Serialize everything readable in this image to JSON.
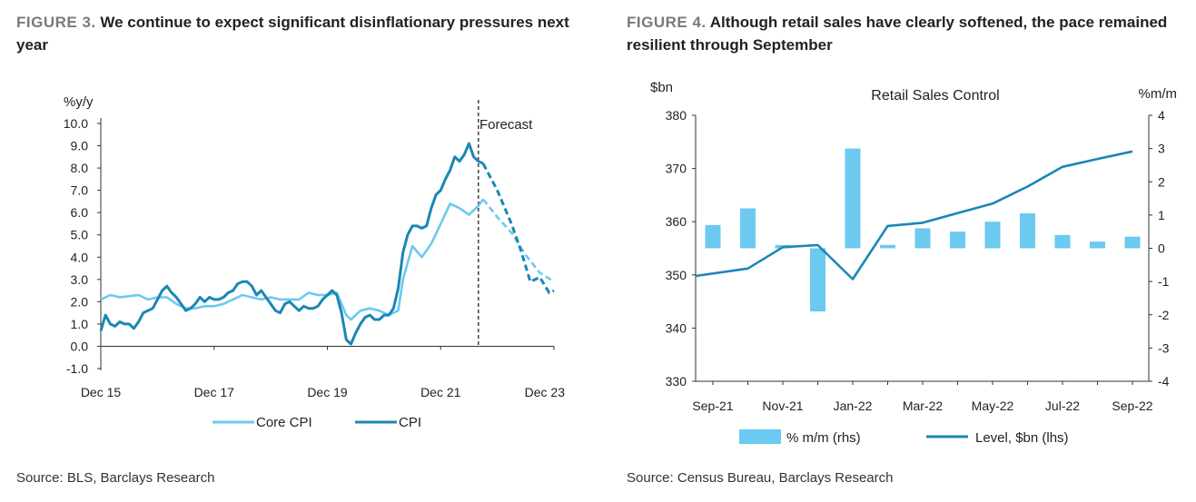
{
  "left": {
    "figure_number": "FIGURE 3.",
    "figure_title": "We continue to expect significant disinflationary pressures next year",
    "source": "Source: BLS, Barclays Research"
  },
  "right": {
    "figure_number": "FIGURE 4.",
    "figure_title": "Although retail sales have clearly softened, the pace remained resilient through September",
    "source": "Source: Census Bureau, Barclays Research"
  },
  "chart_data": [
    {
      "type": "line",
      "title": "",
      "ylabel": "%y/y",
      "xlabel": "",
      "ylim": [
        -1.0,
        10.0
      ],
      "yticks": [
        "10.0",
        "9.0",
        "8.0",
        "7.0",
        "6.0",
        "5.0",
        "4.0",
        "3.0",
        "2.0",
        "1.0",
        "0.0",
        "-1.0"
      ],
      "x_tick_labels": [
        "Dec 15",
        "Dec 17",
        "Dec 19",
        "Dec 21",
        "Dec 23"
      ],
      "annotation": "Forecast",
      "forecast_start_month": "Sep 2022",
      "legend": [
        "Core CPI",
        "CPI"
      ],
      "legend_position": "bottom",
      "grid": false,
      "colors": {
        "Core CPI": "#6cc9ef",
        "CPI": "#1b86b6"
      },
      "series": [
        {
          "name": "Core CPI",
          "color": "#6cc9ef",
          "points": [
            [
              "2015-12",
              2.1
            ],
            [
              "2016-02",
              2.3
            ],
            [
              "2016-04",
              2.2
            ],
            [
              "2016-06",
              2.25
            ],
            [
              "2016-08",
              2.3
            ],
            [
              "2016-10",
              2.1
            ],
            [
              "2016-12",
              2.2
            ],
            [
              "2017-02",
              2.2
            ],
            [
              "2017-04",
              1.9
            ],
            [
              "2017-06",
              1.7
            ],
            [
              "2017-08",
              1.7
            ],
            [
              "2017-10",
              1.8
            ],
            [
              "2017-12",
              1.8
            ],
            [
              "2018-02",
              1.9
            ],
            [
              "2018-04",
              2.1
            ],
            [
              "2018-06",
              2.3
            ],
            [
              "2018-08",
              2.2
            ],
            [
              "2018-10",
              2.1
            ],
            [
              "2018-12",
              2.2
            ],
            [
              "2019-02",
              2.1
            ],
            [
              "2019-04",
              2.1
            ],
            [
              "2019-06",
              2.1
            ],
            [
              "2019-08",
              2.4
            ],
            [
              "2019-10",
              2.3
            ],
            [
              "2019-12",
              2.3
            ],
            [
              "2020-02",
              2.4
            ],
            [
              "2020-04",
              1.4
            ],
            [
              "2020-05",
              1.2
            ],
            [
              "2020-07",
              1.6
            ],
            [
              "2020-09",
              1.7
            ],
            [
              "2020-11",
              1.6
            ],
            [
              "2021-01",
              1.4
            ],
            [
              "2021-03",
              1.6
            ],
            [
              "2021-04",
              3.0
            ],
            [
              "2021-06",
              4.5
            ],
            [
              "2021-08",
              4.0
            ],
            [
              "2021-10",
              4.6
            ],
            [
              "2021-12",
              5.5
            ],
            [
              "2022-02",
              6.4
            ],
            [
              "2022-04",
              6.2
            ],
            [
              "2022-06",
              5.9
            ],
            [
              "2022-08",
              6.3
            ],
            [
              "2022-09",
              6.6
            ]
          ],
          "forecast": [
            [
              "2022-09",
              6.6
            ],
            [
              "2022-12",
              5.8
            ],
            [
              "2023-03",
              5.1
            ],
            [
              "2023-06",
              4.1
            ],
            [
              "2023-09",
              3.3
            ],
            [
              "2023-12",
              2.9
            ]
          ]
        },
        {
          "name": "CPI",
          "color": "#1b86b6",
          "points": [
            [
              "2015-12",
              0.7
            ],
            [
              "2016-01",
              1.4
            ],
            [
              "2016-02",
              1.0
            ],
            [
              "2016-03",
              0.9
            ],
            [
              "2016-04",
              1.1
            ],
            [
              "2016-05",
              1.0
            ],
            [
              "2016-06",
              1.0
            ],
            [
              "2016-07",
              0.8
            ],
            [
              "2016-08",
              1.1
            ],
            [
              "2016-09",
              1.5
            ],
            [
              "2016-10",
              1.6
            ],
            [
              "2016-11",
              1.7
            ],
            [
              "2016-12",
              2.1
            ],
            [
              "2017-01",
              2.5
            ],
            [
              "2017-02",
              2.7
            ],
            [
              "2017-03",
              2.4
            ],
            [
              "2017-04",
              2.2
            ],
            [
              "2017-05",
              1.9
            ],
            [
              "2017-06",
              1.6
            ],
            [
              "2017-07",
              1.7
            ],
            [
              "2017-08",
              1.9
            ],
            [
              "2017-09",
              2.2
            ],
            [
              "2017-10",
              2.0
            ],
            [
              "2017-11",
              2.2
            ],
            [
              "2017-12",
              2.1
            ],
            [
              "2018-01",
              2.1
            ],
            [
              "2018-02",
              2.2
            ],
            [
              "2018-03",
              2.4
            ],
            [
              "2018-04",
              2.5
            ],
            [
              "2018-05",
              2.8
            ],
            [
              "2018-06",
              2.9
            ],
            [
              "2018-07",
              2.9
            ],
            [
              "2018-08",
              2.7
            ],
            [
              "2018-09",
              2.3
            ],
            [
              "2018-10",
              2.5
            ],
            [
              "2018-11",
              2.2
            ],
            [
              "2018-12",
              1.9
            ],
            [
              "2019-01",
              1.6
            ],
            [
              "2019-02",
              1.5
            ],
            [
              "2019-03",
              1.9
            ],
            [
              "2019-04",
              2.0
            ],
            [
              "2019-05",
              1.8
            ],
            [
              "2019-06",
              1.6
            ],
            [
              "2019-07",
              1.8
            ],
            [
              "2019-08",
              1.7
            ],
            [
              "2019-09",
              1.7
            ],
            [
              "2019-10",
              1.8
            ],
            [
              "2019-11",
              2.1
            ],
            [
              "2019-12",
              2.3
            ],
            [
              "2020-01",
              2.5
            ],
            [
              "2020-02",
              2.3
            ],
            [
              "2020-03",
              1.5
            ],
            [
              "2020-04",
              0.3
            ],
            [
              "2020-05",
              0.1
            ],
            [
              "2020-06",
              0.6
            ],
            [
              "2020-07",
              1.0
            ],
            [
              "2020-08",
              1.3
            ],
            [
              "2020-09",
              1.4
            ],
            [
              "2020-10",
              1.2
            ],
            [
              "2020-11",
              1.2
            ],
            [
              "2020-12",
              1.4
            ],
            [
              "2021-01",
              1.4
            ],
            [
              "2021-02",
              1.7
            ],
            [
              "2021-03",
              2.6
            ],
            [
              "2021-04",
              4.2
            ],
            [
              "2021-05",
              5.0
            ],
            [
              "2021-06",
              5.4
            ],
            [
              "2021-07",
              5.4
            ],
            [
              "2021-08",
              5.3
            ],
            [
              "2021-09",
              5.4
            ],
            [
              "2021-10",
              6.2
            ],
            [
              "2021-11",
              6.8
            ],
            [
              "2021-12",
              7.0
            ],
            [
              "2022-01",
              7.5
            ],
            [
              "2022-02",
              7.9
            ],
            [
              "2022-03",
              8.5
            ],
            [
              "2022-04",
              8.3
            ],
            [
              "2022-05",
              8.6
            ],
            [
              "2022-06",
              9.1
            ],
            [
              "2022-07",
              8.5
            ],
            [
              "2022-08",
              8.3
            ],
            [
              "2022-09",
              8.2
            ]
          ],
          "forecast": [
            [
              "2022-09",
              8.2
            ],
            [
              "2022-12",
              7.0
            ],
            [
              "2023-03",
              5.5
            ],
            [
              "2023-05",
              4.3
            ],
            [
              "2023-07",
              2.9
            ],
            [
              "2023-09",
              3.1
            ],
            [
              "2023-11",
              2.4
            ],
            [
              "2023-12",
              2.5
            ]
          ]
        }
      ]
    },
    {
      "type": "bar+line",
      "title": "Retail Sales Control",
      "ylabel_left": "$bn",
      "ylabel_right": "%m/m",
      "ylim_left": [
        330,
        380
      ],
      "ylim_right": [
        -4,
        4
      ],
      "yticks_left": [
        "380",
        "370",
        "360",
        "350",
        "340",
        "330"
      ],
      "yticks_right": [
        "4",
        "3",
        "2",
        "1",
        "0",
        "-1",
        "-2",
        "-3",
        "-4"
      ],
      "x_tick_labels": [
        "Sep-21",
        "Nov-21",
        "Jan-22",
        "Mar-22",
        "May-22",
        "Jul-22",
        "Sep-22"
      ],
      "categories": [
        "Sep-21",
        "Oct-21",
        "Nov-21",
        "Dec-21",
        "Jan-22",
        "Feb-22",
        "Mar-22",
        "Apr-22",
        "May-22",
        "Jun-22",
        "Jul-22",
        "Aug-22",
        "Sep-22"
      ],
      "legend": [
        "% m/m (rhs)",
        "Level, $bn (lhs)"
      ],
      "legend_position": "bottom",
      "grid": false,
      "colors": {
        "bars": "#6cc9ef",
        "line": "#1b86b6"
      },
      "series": [
        {
          "name": "% m/m (rhs)",
          "axis": "right",
          "kind": "bar",
          "values": [
            0.7,
            1.2,
            0.1,
            -1.9,
            3.0,
            0.1,
            0.6,
            0.5,
            0.8,
            1.05,
            0.4,
            0.2,
            0.35
          ]
        },
        {
          "name": "Level, $bn (lhs)",
          "axis": "left",
          "kind": "line",
          "values": [
            349.8,
            351.2,
            355.2,
            355.6,
            349.2,
            359.2,
            359.8,
            361.6,
            363.4,
            366.6,
            370.3,
            371.8,
            373.2
          ]
        }
      ]
    }
  ]
}
